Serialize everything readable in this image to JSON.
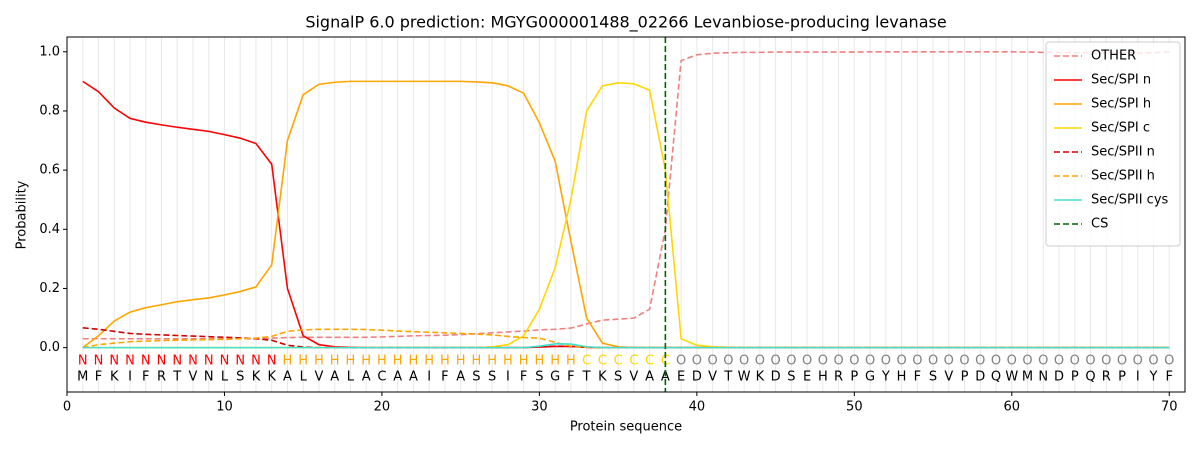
{
  "chart_data": {
    "type": "line",
    "title": "SignalP 6.0 prediction: MGYG000001488_02266 Levanbiose-producing levanase",
    "x_label": "Protein sequence",
    "y_label": "Probability",
    "xlim": [
      0,
      71
    ],
    "ylim": [
      -0.15,
      1.05
    ],
    "xticks": [
      0,
      10,
      20,
      30,
      40,
      50,
      60,
      70
    ],
    "yticks": [
      {
        "value": 0,
        "label": "0.0"
      },
      {
        "value": 0.2,
        "label": "0.2"
      },
      {
        "value": 0.4,
        "label": "0.4"
      },
      {
        "value": 0.6,
        "label": "0.6"
      },
      {
        "value": 0.8,
        "label": "0.8"
      },
      {
        "value": 1,
        "label": "1.0"
      }
    ],
    "grid": "x",
    "legend": "upper right",
    "x": [
      1,
      2,
      3,
      4,
      5,
      6,
      7,
      8,
      9,
      10,
      11,
      12,
      13,
      14,
      15,
      16,
      17,
      18,
      19,
      20,
      21,
      22,
      23,
      24,
      25,
      26,
      27,
      28,
      29,
      30,
      31,
      32,
      33,
      34,
      35,
      36,
      37,
      38,
      39,
      40,
      41,
      42,
      43,
      44,
      45,
      46,
      47,
      48,
      49,
      50,
      51,
      52,
      53,
      54,
      55,
      56,
      57,
      58,
      59,
      60,
      61,
      62,
      63,
      64,
      65,
      66,
      67,
      68,
      69,
      70
    ],
    "residues": [
      "M",
      "F",
      "K",
      "I",
      "F",
      "R",
      "T",
      "V",
      "N",
      "L",
      "S",
      "K",
      "K",
      "A",
      "L",
      "V",
      "A",
      "L",
      "A",
      "C",
      "A",
      "A",
      "I",
      "F",
      "A",
      "S",
      "S",
      "I",
      "F",
      "S",
      "G",
      "F",
      "T",
      "K",
      "S",
      "V",
      "A",
      "A",
      "E",
      "D",
      "V",
      "T",
      "W",
      "K",
      "D",
      "S",
      "E",
      "H",
      "R",
      "P",
      "G",
      "Y",
      "H",
      "F",
      "S",
      "V",
      "P",
      "D",
      "Q",
      "W",
      "M",
      "N",
      "D",
      "P",
      "Q",
      "R",
      "P",
      "I",
      "Y",
      "F"
    ],
    "regions": [
      "N",
      "N",
      "N",
      "N",
      "N",
      "N",
      "N",
      "N",
      "N",
      "N",
      "N",
      "N",
      "N",
      "H",
      "H",
      "H",
      "H",
      "H",
      "H",
      "H",
      "H",
      "H",
      "H",
      "H",
      "H",
      "H",
      "H",
      "H",
      "H",
      "H",
      "H",
      "H",
      "C",
      "C",
      "C",
      "C",
      "C",
      "C",
      "O",
      "O",
      "O",
      "O",
      "O",
      "O",
      "O",
      "O",
      "O",
      "O",
      "O",
      "O",
      "O",
      "O",
      "O",
      "O",
      "O",
      "O",
      "O",
      "O",
      "O",
      "O",
      "O",
      "O",
      "O",
      "O",
      "O",
      "O",
      "O",
      "O",
      "O",
      "O"
    ],
    "region_colors": {
      "N": "#ff0000",
      "H": "#ffa500",
      "C": "#ffd700",
      "O": "#808080"
    },
    "series": [
      {
        "name": "OTHER",
        "color": "#f08080",
        "linestyle": "dashed",
        "values": [
          0.03,
          0.03,
          0.03,
          0.03,
          0.03,
          0.03,
          0.03,
          0.03,
          0.03,
          0.03,
          0.03,
          0.03,
          0.032,
          0.034,
          0.035,
          0.035,
          0.035,
          0.035,
          0.035,
          0.036,
          0.038,
          0.04,
          0.041,
          0.042,
          0.044,
          0.047,
          0.05,
          0.053,
          0.056,
          0.06,
          0.062,
          0.066,
          0.08,
          0.093,
          0.096,
          0.1,
          0.13,
          0.4,
          0.97,
          0.99,
          0.995,
          0.997,
          0.998,
          0.998,
          0.999,
          0.999,
          0.999,
          0.999,
          0.999,
          0.999,
          1,
          1,
          1,
          1,
          1,
          1,
          1,
          1,
          1,
          1,
          0.999,
          0.998,
          0.998,
          0.997,
          0.997,
          0.996,
          0.996,
          0.996,
          0.997,
          1
        ]
      },
      {
        "name": "Sec/SPI n",
        "color": "#ff0000",
        "linestyle": "solid",
        "values": [
          0.9,
          0.865,
          0.81,
          0.775,
          0.762,
          0.753,
          0.745,
          0.738,
          0.731,
          0.72,
          0.708,
          0.69,
          0.62,
          0.2,
          0.04,
          0.01,
          0.003,
          0.001,
          0,
          0,
          0,
          0,
          0,
          0,
          0,
          0,
          0,
          0,
          0,
          0.002,
          0.004,
          0.004,
          0.001,
          0,
          0,
          0,
          0,
          0,
          0,
          0,
          0,
          0,
          0,
          0,
          0,
          0,
          0,
          0,
          0,
          0,
          0,
          0,
          0,
          0,
          0,
          0,
          0,
          0,
          0,
          0,
          0,
          0,
          0,
          0,
          0,
          0,
          0,
          0,
          0,
          0
        ]
      },
      {
        "name": "Sec/SPI h",
        "color": "#ffa500",
        "linestyle": "solid",
        "values": [
          0,
          0.04,
          0.09,
          0.12,
          0.135,
          0.145,
          0.155,
          0.162,
          0.168,
          0.178,
          0.19,
          0.205,
          0.28,
          0.7,
          0.855,
          0.89,
          0.897,
          0.9,
          0.9,
          0.9,
          0.9,
          0.9,
          0.9,
          0.9,
          0.9,
          0.898,
          0.895,
          0.885,
          0.86,
          0.76,
          0.63,
          0.36,
          0.1,
          0.015,
          0.003,
          0,
          0,
          0,
          0,
          0,
          0,
          0,
          0,
          0,
          0,
          0,
          0,
          0,
          0,
          0,
          0,
          0,
          0,
          0,
          0,
          0,
          0,
          0,
          0,
          0,
          0,
          0,
          0,
          0,
          0,
          0,
          0,
          0,
          0,
          0
        ]
      },
      {
        "name": "Sec/SPI c",
        "color": "#ffd700",
        "linestyle": "solid",
        "values": [
          0,
          0,
          0,
          0,
          0,
          0,
          0,
          0,
          0,
          0,
          0,
          0,
          0,
          0,
          0,
          0,
          0,
          0,
          0,
          0,
          0,
          0,
          0,
          0,
          0,
          0,
          0.003,
          0.01,
          0.04,
          0.13,
          0.27,
          0.5,
          0.8,
          0.885,
          0.895,
          0.892,
          0.87,
          0.6,
          0.03,
          0.008,
          0.003,
          0.001,
          0,
          0,
          0,
          0,
          0,
          0,
          0,
          0,
          0,
          0,
          0,
          0,
          0,
          0,
          0,
          0,
          0,
          0,
          0,
          0,
          0,
          0,
          0,
          0,
          0,
          0,
          0,
          0
        ]
      },
      {
        "name": "Sec/SPII n",
        "color": "#d00000",
        "linestyle": "dashed",
        "values": [
          0.067,
          0.062,
          0.055,
          0.048,
          0.045,
          0.043,
          0.041,
          0.039,
          0.037,
          0.035,
          0.033,
          0.03,
          0.025,
          0.008,
          0.002,
          0,
          0,
          0,
          0,
          0,
          0,
          0,
          0,
          0,
          0,
          0,
          0,
          0,
          0,
          0.003,
          0.005,
          0.004,
          0.001,
          0,
          0,
          0,
          0,
          0,
          0,
          0,
          0,
          0,
          0,
          0,
          0,
          0,
          0,
          0,
          0,
          0,
          0,
          0,
          0,
          0,
          0,
          0,
          0,
          0,
          0,
          0,
          0,
          0,
          0,
          0,
          0,
          0,
          0,
          0,
          0,
          0
        ]
      },
      {
        "name": "Sec/SPII h",
        "color": "#ffa500",
        "linestyle": "dashed",
        "values": [
          0,
          0.01,
          0.015,
          0.02,
          0.022,
          0.024,
          0.025,
          0.026,
          0.027,
          0.028,
          0.03,
          0.032,
          0.038,
          0.055,
          0.06,
          0.062,
          0.062,
          0.062,
          0.061,
          0.059,
          0.056,
          0.054,
          0.052,
          0.05,
          0.048,
          0.046,
          0.043,
          0.038,
          0.034,
          0.032,
          0.018,
          0.005,
          0.001,
          0,
          0,
          0,
          0,
          0,
          0,
          0,
          0,
          0,
          0,
          0,
          0,
          0,
          0,
          0,
          0,
          0,
          0,
          0,
          0,
          0,
          0,
          0,
          0,
          0,
          0,
          0,
          0,
          0,
          0,
          0,
          0,
          0,
          0,
          0,
          0,
          0
        ]
      },
      {
        "name": "Sec/SPII cys",
        "color": "#40e0d0",
        "linestyle": "solid",
        "values": [
          0,
          0,
          0,
          0,
          0,
          0,
          0,
          0,
          0,
          0,
          0,
          0,
          0,
          0,
          0,
          0,
          0,
          0,
          0,
          0,
          0,
          0,
          0,
          0,
          0,
          0,
          0,
          0,
          0,
          0.005,
          0.013,
          0.012,
          0.003,
          0,
          0,
          0,
          0,
          0,
          0,
          0,
          0,
          0,
          0,
          0,
          0,
          0,
          0,
          0,
          0,
          0,
          0,
          0,
          0,
          0,
          0,
          0,
          0,
          0,
          0,
          0,
          0,
          0,
          0,
          0,
          0,
          0,
          0,
          0,
          0,
          0
        ]
      }
    ],
    "cleavage_site": {
      "name": "CS",
      "x": 38,
      "color": "#006400",
      "linestyle": "dashed"
    }
  }
}
